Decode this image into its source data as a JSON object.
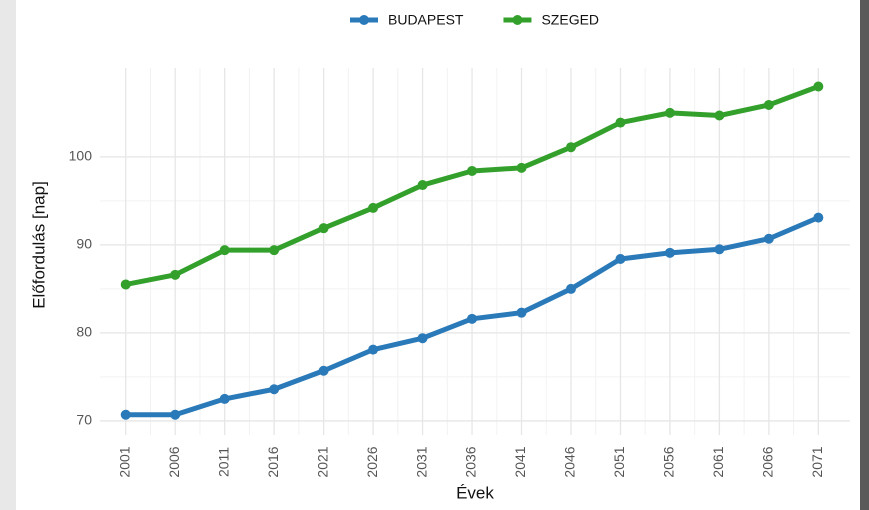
{
  "chart_data": {
    "type": "line",
    "x": [
      2001,
      2006,
      2011,
      2016,
      2021,
      2026,
      2031,
      2036,
      2041,
      2046,
      2051,
      2056,
      2061,
      2066,
      2071
    ],
    "series": [
      {
        "name": "BUDAPEST",
        "color": "#2a7ab9",
        "values": [
          70.7,
          70.7,
          72.5,
          73.6,
          75.7,
          78.1,
          79.4,
          81.6,
          82.3,
          85.0,
          88.4,
          89.1,
          89.5,
          90.7,
          93.1
        ]
      },
      {
        "name": "SZEGED",
        "color": "#33a02c",
        "values": [
          85.5,
          86.6,
          89.4,
          89.4,
          91.9,
          94.2,
          96.8,
          98.4,
          98.75,
          101.1,
          103.9,
          105.0,
          104.7,
          105.9,
          108.0
        ]
      }
    ],
    "xlabel": "Évek",
    "ylabel": "Előfordulás [nap]",
    "xlim": [
      1998.4,
      2074.2
    ],
    "xticks": [
      2001,
      2006,
      2011,
      2016,
      2021,
      2026,
      2031,
      2036,
      2041,
      2046,
      2051,
      2056,
      2061,
      2066,
      2071
    ],
    "ylim": [
      68.4,
      110.1
    ],
    "yticks": [
      70,
      80,
      90,
      100
    ],
    "grid": true,
    "legend": "top"
  }
}
